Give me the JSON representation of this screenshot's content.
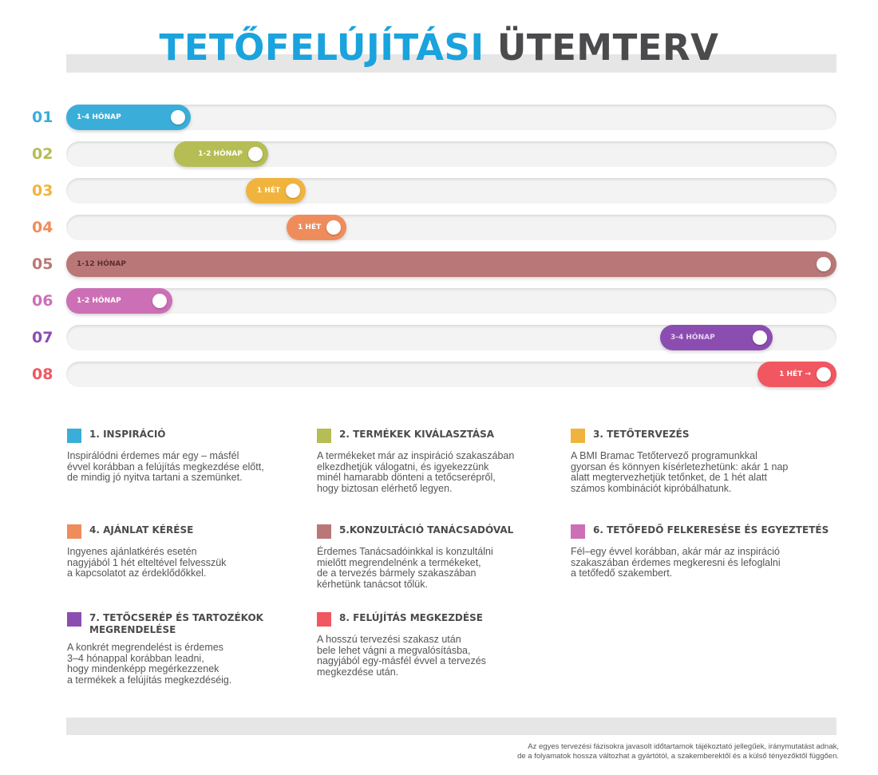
{
  "header": {
    "title_part1": "TETŐFELÚJÍTÁSI",
    "title_part2": "ÜTEMTERV"
  },
  "colors": {
    "title_blue": "#1aa3dd",
    "title_dark": "#4b4b4d",
    "track": "#f3f3f3",
    "band": "#e6e6e7"
  },
  "timeline": [
    {
      "num": "01",
      "duration": "1-4 HÓNAP",
      "color": "#3aaed8",
      "label_color": "#ffffff",
      "start_fraction": 0.0,
      "end_fraction": 0.162
    },
    {
      "num": "02",
      "duration": "1-2 HÓNAP",
      "color": "#b5bd54",
      "label_color": "#ffffff",
      "start_fraction": 0.14,
      "end_fraction": 0.262
    },
    {
      "num": "03",
      "duration": "1 HÉT",
      "color": "#f0b43e",
      "label_color": "#ffffff",
      "start_fraction": 0.233,
      "end_fraction": 0.311
    },
    {
      "num": "04",
      "duration": "1 HÉT",
      "color": "#ef8c5c",
      "label_color": "#ffffff",
      "start_fraction": 0.286,
      "end_fraction": 0.364
    },
    {
      "num": "05",
      "duration": "1-12 HÓNAP",
      "color": "#b97877",
      "label_color": "#5a2e2e",
      "start_fraction": 0.0,
      "end_fraction": 1.0
    },
    {
      "num": "06",
      "duration": "1-2 HÓNAP",
      "color": "#cd6fb6",
      "label_color": "#ffffff",
      "start_fraction": 0.0,
      "end_fraction": 0.138
    },
    {
      "num": "07",
      "duration": "3-4 HÓNAP",
      "color": "#8c4db1",
      "label_color": "#e5d3f0",
      "start_fraction": 0.771,
      "end_fraction": 0.917
    },
    {
      "num": "08",
      "duration": "1 HÉT →",
      "color": "#f05761",
      "label_color": "#ffffff",
      "start_fraction": 0.897,
      "end_fraction": 1.0
    }
  ],
  "legend": [
    {
      "title": "1. INSPIRÁCIÓ",
      "color": "#3aaed8",
      "text": "Inspirálódni érdemes már egy – másfél\névvel korábban a felújítás megkezdése előtt,\nde mindig jó nyitva tartani a szemünket."
    },
    {
      "title": "2. TERMÉKEK KIVÁLASZTÁSA",
      "color": "#b5bd54",
      "text": "A termékeket már az inspiráció szakaszában\nelkezdhetjük válogatni, és igyekezzünk\nminél hamarabb dönteni a tetőcserépről,\nhogy biztosan elérhető legyen."
    },
    {
      "title": "3. TETŐTERVEZÉS",
      "color": "#f0b43e",
      "text": "A BMI Bramac Tetőtervező programunkkal\ngyorsan és könnyen kísérletezhetünk: akár 1 nap\nalatt megtervezhetjük tetőnket, de 1 hét alatt\nszámos kombinációt kipróbálhatunk."
    },
    {
      "title": "4. AJÁNLAT KÉRÉSE",
      "color": "#ef8c5c",
      "text": "Ingyenes ajánlatkérés esetén\nnagyjából 1 hét elteltével felvesszük\na kapcsolatot az érdeklődőkkel."
    },
    {
      "title": "5.KONZULTÁCIÓ TANÁCSADÓVAL",
      "color": "#b97877",
      "text": "Érdemes Tanácsadóinkkal is konzultálni\nmielőtt megrendelnénk a termékeket,\nde a tervezés bármely szakaszában\nkérhetünk tanácsot tőlük."
    },
    {
      "title": "6. TETŐFEDŐ FELKERESÉSE ÉS EGYEZTETÉS",
      "color": "#cd6fb6",
      "text": "Fél–egy évvel korábban, akár már az inspiráció\nszakaszában érdemes megkeresni és lefoglalni\na tetőfedő szakembert."
    },
    {
      "title": "7. TETŐCSERÉP ÉS TARTOZÉKOK MEGRENDELÉSE",
      "color": "#8c4db1",
      "text": "A konkrét megrendelést is érdemes\n3–4 hónappal korábban leadni,\nhogy mindenképp megérkezzenek\na termékek  a felújítás megkezdéséig."
    },
    {
      "title": "8. FELÚJÍTÁS MEGKEZDÉSE",
      "color": "#f05761",
      "text": "A hosszú tervezési szakasz után\nbele lehet vágni a megvalósításba,\nnagyjából egy-másfél évvel a tervezés\nmegkezdése után."
    }
  ],
  "footnote": "Az egyes tervezési fázisokra javasolt időtartamok tájékoztató jellegűek, iránymutatást adnak,\nde a folyamatok hossza változhat a gyártótól, a szakemberektől és a külső tényezőktől függően."
}
